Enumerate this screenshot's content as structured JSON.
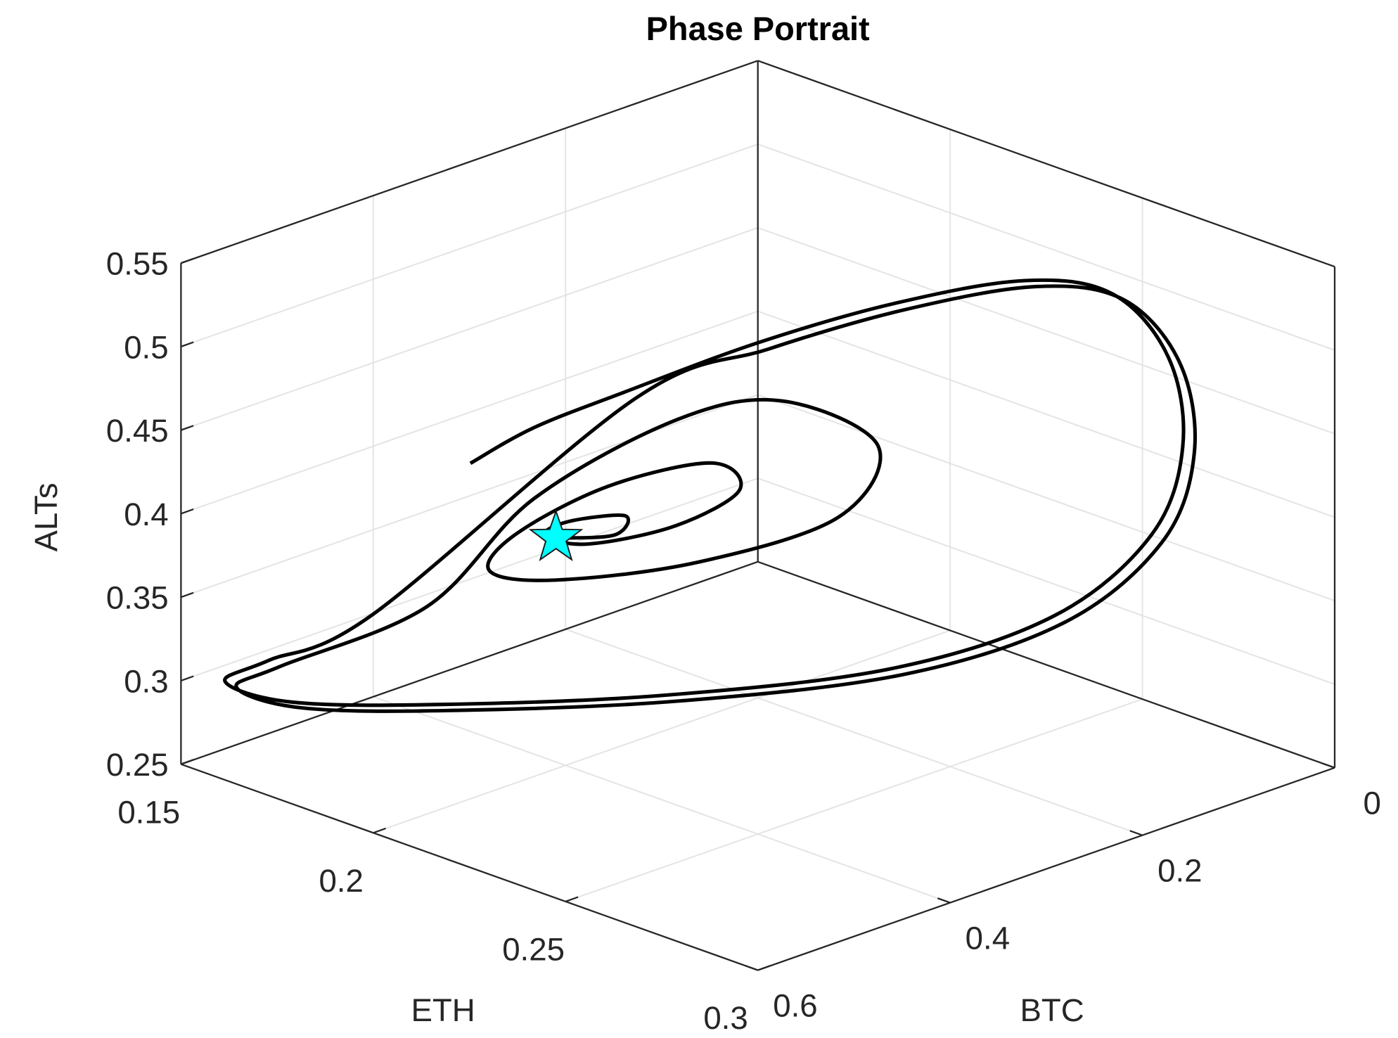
{
  "chart_data": {
    "type": "line3d",
    "title": "Phase Portrait",
    "xlabel": "ETH",
    "ylabel": "BTC",
    "zlabel": "ALTs",
    "xlim": [
      0.15,
      0.3
    ],
    "ylim": [
      0,
      0.6
    ],
    "zlim": [
      0.25,
      0.55
    ],
    "xticks": [
      0.15,
      0.2,
      0.25,
      0.3
    ],
    "yticks": [
      0,
      0.2,
      0.4,
      0.6
    ],
    "zticks": [
      0.25,
      0.3,
      0.35,
      0.4,
      0.45,
      0.5,
      0.55
    ],
    "grid": true,
    "series": [
      {
        "color": "#000000",
        "x": [
          0.178,
          0.186,
          0.203,
          0.226,
          0.242,
          0.256,
          0.263,
          0.275,
          0.282,
          0.283,
          0.278,
          0.258,
          0.224,
          0.188,
          0.16,
          0.153,
          0.16,
          0.175,
          0.203,
          0.226,
          0.242,
          0.256,
          0.263,
          0.275,
          0.282,
          0.283,
          0.278,
          0.258,
          0.224,
          0.188,
          0.16,
          0.153,
          0.16,
          0.179,
          0.19,
          0.207,
          0.223,
          0.237,
          0.236,
          0.216,
          0.195,
          0.185,
          0.186,
          0.195,
          0.209,
          0.217,
          0.209,
          0.197,
          0.19,
          0.19,
          0.197,
          0.199,
          0.195
        ],
        "y": [
          0.411,
          0.377,
          0.351,
          0.305,
          0.227,
          0.146,
          0.083,
          0.073,
          0.086,
          0.123,
          0.204,
          0.293,
          0.391,
          0.476,
          0.524,
          0.566,
          0.549,
          0.501,
          0.339,
          0.293,
          0.215,
          0.134,
          0.071,
          0.061,
          0.074,
          0.111,
          0.192,
          0.281,
          0.379,
          0.464,
          0.512,
          0.554,
          0.537,
          0.46,
          0.393,
          0.311,
          0.266,
          0.223,
          0.26,
          0.327,
          0.391,
          0.419,
          0.396,
          0.336,
          0.284,
          0.287,
          0.321,
          0.365,
          0.382,
          0.356,
          0.326,
          0.345,
          0.39
        ],
        "z": [
          0.415,
          0.436,
          0.466,
          0.505,
          0.526,
          0.535,
          0.52,
          0.49,
          0.445,
          0.4,
          0.364,
          0.334,
          0.31,
          0.292,
          0.28,
          0.295,
          0.31,
          0.34,
          0.46,
          0.499,
          0.52,
          0.529,
          0.514,
          0.484,
          0.439,
          0.394,
          0.358,
          0.328,
          0.304,
          0.286,
          0.274,
          0.289,
          0.304,
          0.34,
          0.4,
          0.445,
          0.46,
          0.436,
          0.4,
          0.37,
          0.355,
          0.358,
          0.376,
          0.4,
          0.415,
          0.406,
          0.385,
          0.373,
          0.376,
          0.379,
          0.382,
          0.376,
          0.38
        ]
      }
    ],
    "points": [
      {
        "x": 0.195,
        "y": 0.39,
        "z": 0.38,
        "color": "#00ffff",
        "marker": "star"
      }
    ]
  }
}
